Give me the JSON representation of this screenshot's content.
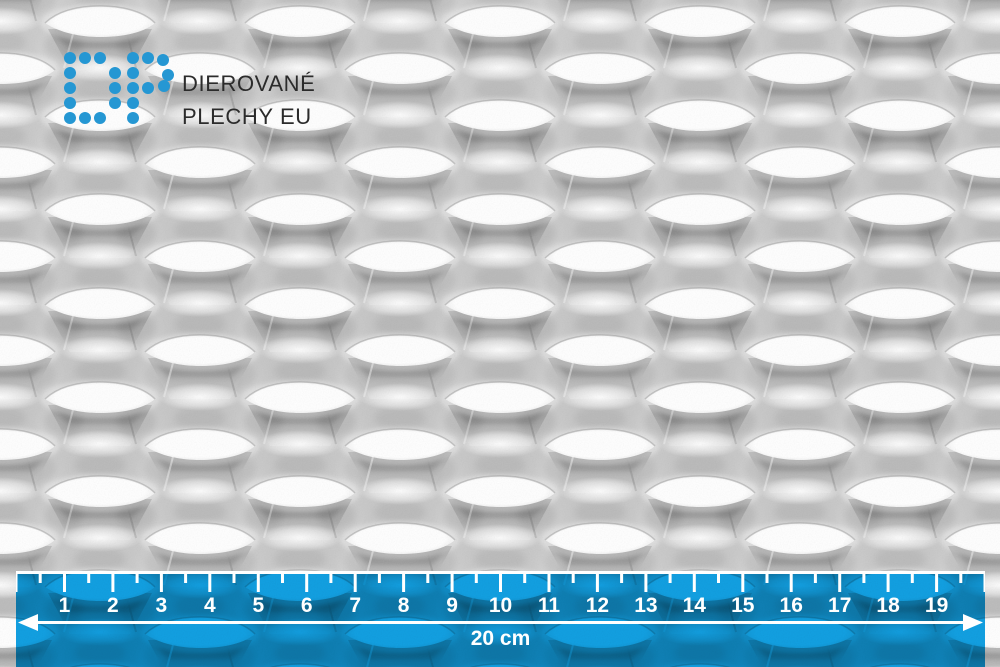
{
  "brand": {
    "logo_icon": "dp-dot-matrix-logo",
    "logo_dot_color": "#2597d3",
    "name_line1": "DIEROVANÉ",
    "name_line2": "PLECHY EU",
    "text_color": "#2b2b2b"
  },
  "photo": {
    "description": "perforated metal sheet with staggered rows of oval drawn holes"
  },
  "ruler": {
    "overlay_color": "#12a0e2",
    "mark_color": "#ffffff",
    "tick_numbers": [
      "1",
      "2",
      "3",
      "4",
      "5",
      "6",
      "7",
      "8",
      "9",
      "10",
      "11",
      "12",
      "13",
      "14",
      "15",
      "16",
      "17",
      "18",
      "19"
    ],
    "span_label": "20 cm"
  }
}
